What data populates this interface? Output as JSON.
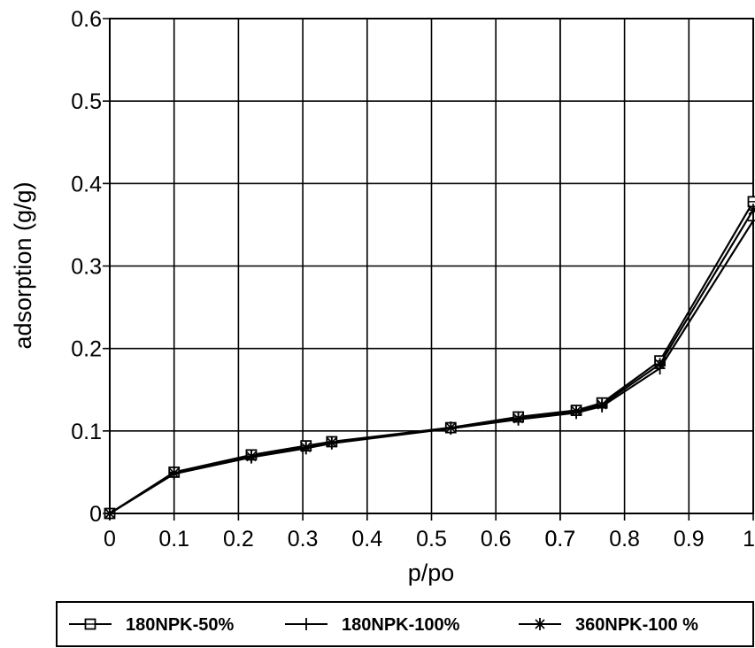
{
  "chart_data": {
    "type": "line",
    "title": "",
    "xlabel": "p/po",
    "ylabel": "adsorption (g/g)",
    "xlim": [
      0,
      1
    ],
    "ylim": [
      0,
      0.6
    ],
    "x_ticks": [
      "0",
      "0.1",
      "0.2",
      "0.3",
      "0.4",
      "0.5",
      "0.6",
      "0.7",
      "0.7",
      "0.8",
      "0.9",
      "1"
    ],
    "x_tick_values": [
      0,
      0.1,
      0.2,
      0.3,
      0.4,
      0.5,
      0.6,
      0.7,
      0.7,
      0.8,
      0.9,
      1.0
    ],
    "y_ticks": [
      "0",
      "0.1",
      "0.2",
      "0.3",
      "0.4",
      "0.5",
      "0.6"
    ],
    "y_tick_values": [
      0,
      0.1,
      0.2,
      0.3,
      0.4,
      0.5,
      0.6
    ],
    "grid": true,
    "legend_position": "bottom",
    "series": [
      {
        "name": "180NPK-50%",
        "marker": "square",
        "color": "#000000",
        "x": [
          0,
          0.1,
          0.22,
          0.305,
          0.345,
          0.53,
          0.635,
          0.725,
          0.765,
          0.855,
          1.0
        ],
        "y": [
          0,
          0.05,
          0.071,
          0.082,
          0.087,
          0.104,
          0.117,
          0.125,
          0.134,
          0.185,
          0.378
        ]
      },
      {
        "name": "180NPK-100%",
        "marker": "plus",
        "color": "#000000",
        "x": [
          0,
          0.1,
          0.22,
          0.305,
          0.345,
          0.53,
          0.635,
          0.725,
          0.765,
          0.855,
          1.0
        ],
        "y": [
          0,
          0.048,
          0.068,
          0.079,
          0.085,
          0.103,
          0.114,
          0.122,
          0.13,
          0.176,
          0.355
        ]
      },
      {
        "name": "360NPK-100 %",
        "marker": "asterisk",
        "color": "#000000",
        "x": [
          0,
          0.1,
          0.22,
          0.305,
          0.345,
          0.53,
          0.635,
          0.725,
          0.765,
          0.855,
          1.0
        ],
        "y": [
          0,
          0.049,
          0.069,
          0.08,
          0.086,
          0.104,
          0.115,
          0.124,
          0.132,
          0.181,
          0.368
        ]
      }
    ]
  }
}
